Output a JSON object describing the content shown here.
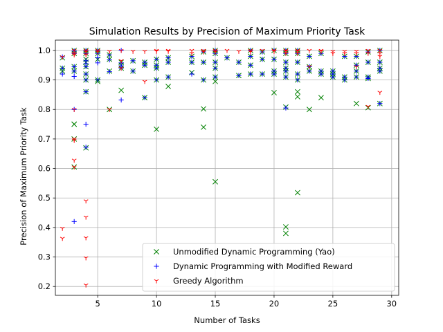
{
  "chart_data": {
    "type": "scatter",
    "title": "Simulation Results by Precision of Maximum Priority Task",
    "xlabel": "Number of Tasks",
    "ylabel": "Precision of Maximum Priority Task",
    "xlim": [
      1.4,
      30.6
    ],
    "ylim": [
      0.17,
      1.035
    ],
    "xticks": [
      5,
      10,
      15,
      20,
      25,
      30
    ],
    "yticks": [
      0.2,
      0.3,
      0.4,
      0.5,
      0.6,
      0.7,
      0.8,
      0.9,
      1.0
    ],
    "xtick_labels": [
      "5",
      "10",
      "15",
      "20",
      "25",
      "30"
    ],
    "ytick_labels": [
      "0.2",
      "0.3",
      "0.4",
      "0.5",
      "0.6",
      "0.7",
      "0.8",
      "0.9",
      "1.0"
    ],
    "grid": true,
    "legend_position": "lower-right",
    "series": [
      {
        "name": "Unmodified Dynamic Programming (Yao)",
        "marker": "x",
        "color": "#008000",
        "points": [
          [
            2,
            0.975
          ],
          [
            2,
            0.94
          ],
          [
            2,
            0.93
          ],
          [
            3,
            1.0
          ],
          [
            3,
            0.99
          ],
          [
            3,
            0.945
          ],
          [
            3,
            0.93
          ],
          [
            3,
            0.75
          ],
          [
            3,
            0.75
          ],
          [
            3,
            0.7
          ],
          [
            3,
            0.605
          ],
          [
            4,
            1.0
          ],
          [
            4,
            0.99
          ],
          [
            4,
            0.97
          ],
          [
            4,
            0.96
          ],
          [
            4,
            0.945
          ],
          [
            4,
            0.92
          ],
          [
            4,
            0.9
          ],
          [
            4,
            0.86
          ],
          [
            4,
            0.67
          ],
          [
            5,
            1.0
          ],
          [
            5,
            0.99
          ],
          [
            5,
            0.97
          ],
          [
            5,
            0.9
          ],
          [
            5,
            0.895
          ],
          [
            6,
            0.985
          ],
          [
            6,
            0.97
          ],
          [
            6,
            0.93
          ],
          [
            6,
            0.8
          ],
          [
            7,
            0.96
          ],
          [
            7,
            0.95
          ],
          [
            7,
            0.94
          ],
          [
            7,
            0.865
          ],
          [
            8,
            0.965
          ],
          [
            8,
            0.93
          ],
          [
            9,
            0.96
          ],
          [
            9,
            0.95
          ],
          [
            9,
            0.84
          ],
          [
            10,
            0.97
          ],
          [
            10,
            0.95
          ],
          [
            10,
            0.94
          ],
          [
            10,
            0.9
          ],
          [
            10,
            0.733
          ],
          [
            11,
            0.975
          ],
          [
            11,
            0.96
          ],
          [
            11,
            0.91
          ],
          [
            11,
            0.878
          ],
          [
            13,
            0.98
          ],
          [
            13,
            0.96
          ],
          [
            13,
            0.925
          ],
          [
            14,
            0.995
          ],
          [
            14,
            0.96
          ],
          [
            14,
            0.9
          ],
          [
            14,
            0.802
          ],
          [
            14,
            0.74
          ],
          [
            15,
            1.0
          ],
          [
            15,
            0.99
          ],
          [
            15,
            0.96
          ],
          [
            15,
            0.94
          ],
          [
            15,
            0.91
          ],
          [
            15,
            0.895
          ],
          [
            15,
            0.555
          ],
          [
            16,
            0.975
          ],
          [
            17,
            0.96
          ],
          [
            17,
            0.915
          ],
          [
            18,
            1.0
          ],
          [
            18,
            0.98
          ],
          [
            18,
            0.95
          ],
          [
            18,
            0.92
          ],
          [
            19,
            0.995
          ],
          [
            19,
            0.97
          ],
          [
            19,
            0.92
          ],
          [
            20,
            1.0
          ],
          [
            20,
            0.97
          ],
          [
            20,
            0.93
          ],
          [
            20,
            0.92
          ],
          [
            20,
            0.857
          ],
          [
            21,
            1.0
          ],
          [
            21,
            0.99
          ],
          [
            21,
            0.96
          ],
          [
            21,
            0.94
          ],
          [
            21,
            0.93
          ],
          [
            21,
            0.91
          ],
          [
            21,
            0.808
          ],
          [
            21,
            0.402
          ],
          [
            21,
            0.38
          ],
          [
            22,
            1.0
          ],
          [
            22,
            0.99
          ],
          [
            22,
            0.96
          ],
          [
            22,
            0.92
          ],
          [
            22,
            0.9
          ],
          [
            22,
            0.86
          ],
          [
            22,
            0.843
          ],
          [
            22,
            0.518
          ],
          [
            23,
            0.98
          ],
          [
            23,
            0.945
          ],
          [
            23,
            0.93
          ],
          [
            23,
            0.8
          ],
          [
            24,
            0.99
          ],
          [
            24,
            0.93
          ],
          [
            24,
            0.92
          ],
          [
            24,
            0.84
          ],
          [
            25,
            0.93
          ],
          [
            25,
            0.92
          ],
          [
            25,
            0.91
          ],
          [
            26,
            0.98
          ],
          [
            26,
            0.91
          ],
          [
            26,
            0.9
          ],
          [
            27,
            0.98
          ],
          [
            27,
            0.95
          ],
          [
            27,
            0.93
          ],
          [
            27,
            0.91
          ],
          [
            27,
            0.82
          ],
          [
            28,
            0.995
          ],
          [
            28,
            0.96
          ],
          [
            28,
            0.91
          ],
          [
            28,
            0.905
          ],
          [
            28,
            0.806
          ],
          [
            29,
            1.0
          ],
          [
            29,
            0.96
          ],
          [
            29,
            0.94
          ],
          [
            29,
            0.93
          ],
          [
            29,
            0.82
          ]
        ]
      },
      {
        "name": "Dynamic Programming with Modified Reward",
        "marker": "+",
        "color": "#0000ff",
        "points": [
          [
            2,
            0.978
          ],
          [
            2,
            0.94
          ],
          [
            2,
            0.92
          ],
          [
            3,
            0.998
          ],
          [
            3,
            0.99
          ],
          [
            3,
            0.945
          ],
          [
            3,
            0.93
          ],
          [
            3,
            0.912
          ],
          [
            3,
            0.8
          ],
          [
            3,
            0.42
          ],
          [
            4,
            1.0
          ],
          [
            4,
            0.99
          ],
          [
            4,
            0.965
          ],
          [
            4,
            0.955
          ],
          [
            4,
            0.945
          ],
          [
            4,
            0.92
          ],
          [
            4,
            0.9
          ],
          [
            4,
            0.86
          ],
          [
            4,
            0.75
          ],
          [
            4,
            0.672
          ],
          [
            5,
            1.0
          ],
          [
            5,
            0.99
          ],
          [
            5,
            0.975
          ],
          [
            5,
            0.958
          ],
          [
            5,
            0.9
          ],
          [
            6,
            0.985
          ],
          [
            6,
            0.968
          ],
          [
            6,
            0.928
          ],
          [
            7,
            1.0
          ],
          [
            7,
            0.958
          ],
          [
            7,
            0.948
          ],
          [
            7,
            0.94
          ],
          [
            7,
            0.832
          ],
          [
            8,
            0.965
          ],
          [
            8,
            0.93
          ],
          [
            9,
            0.96
          ],
          [
            9,
            0.95
          ],
          [
            9,
            0.84
          ],
          [
            10,
            0.97
          ],
          [
            10,
            0.95
          ],
          [
            10,
            0.94
          ],
          [
            10,
            0.9
          ],
          [
            11,
            0.975
          ],
          [
            11,
            0.96
          ],
          [
            11,
            0.91
          ],
          [
            13,
            0.98
          ],
          [
            13,
            0.96
          ],
          [
            13,
            0.92
          ],
          [
            14,
            0.995
          ],
          [
            14,
            0.96
          ],
          [
            14,
            0.9
          ],
          [
            15,
            1.0
          ],
          [
            15,
            0.99
          ],
          [
            15,
            0.96
          ],
          [
            15,
            0.94
          ],
          [
            15,
            0.91
          ],
          [
            16,
            0.975
          ],
          [
            17,
            0.96
          ],
          [
            17,
            0.915
          ],
          [
            18,
            1.0
          ],
          [
            18,
            0.98
          ],
          [
            18,
            0.95
          ],
          [
            18,
            0.92
          ],
          [
            19,
            0.995
          ],
          [
            19,
            0.97
          ],
          [
            19,
            0.92
          ],
          [
            20,
            1.0
          ],
          [
            20,
            0.97
          ],
          [
            20,
            0.93
          ],
          [
            20,
            0.92
          ],
          [
            21,
            1.0
          ],
          [
            21,
            0.99
          ],
          [
            21,
            0.96
          ],
          [
            21,
            0.94
          ],
          [
            21,
            0.93
          ],
          [
            21,
            0.91
          ],
          [
            21,
            0.805
          ],
          [
            22,
            1.0
          ],
          [
            22,
            0.99
          ],
          [
            22,
            0.96
          ],
          [
            22,
            0.92
          ],
          [
            22,
            0.9
          ],
          [
            23,
            0.98
          ],
          [
            23,
            0.945
          ],
          [
            23,
            0.93
          ],
          [
            24,
            0.99
          ],
          [
            24,
            0.93
          ],
          [
            24,
            0.92
          ],
          [
            25,
            0.93
          ],
          [
            25,
            0.92
          ],
          [
            25,
            0.91
          ],
          [
            26,
            0.98
          ],
          [
            26,
            0.91
          ],
          [
            26,
            0.9
          ],
          [
            27,
            0.98
          ],
          [
            27,
            0.95
          ],
          [
            27,
            0.93
          ],
          [
            27,
            0.91
          ],
          [
            28,
            0.995
          ],
          [
            28,
            0.96
          ],
          [
            28,
            0.91
          ],
          [
            28,
            0.905
          ],
          [
            29,
            1.0
          ],
          [
            29,
            0.96
          ],
          [
            29,
            0.94
          ],
          [
            29,
            0.93
          ],
          [
            29,
            0.82
          ]
        ]
      },
      {
        "name": "Greedy Algorithm",
        "marker": "tri_down",
        "color": "#ff0000",
        "points": [
          [
            2,
            0.978
          ],
          [
            2,
            0.397
          ],
          [
            2,
            0.363
          ],
          [
            3,
            1.0
          ],
          [
            3,
            0.99
          ],
          [
            3,
            0.985
          ],
          [
            3,
            0.8
          ],
          [
            3,
            0.7
          ],
          [
            3,
            0.695
          ],
          [
            3,
            0.628
          ],
          [
            3,
            0.605
          ],
          [
            4,
            1.0
          ],
          [
            4,
            0.995
          ],
          [
            4,
            0.985
          ],
          [
            4,
            0.49
          ],
          [
            4,
            0.435
          ],
          [
            4,
            0.365
          ],
          [
            4,
            0.297
          ],
          [
            4,
            0.205
          ],
          [
            5,
            1.0
          ],
          [
            5,
            0.995
          ],
          [
            6,
            0.997
          ],
          [
            6,
            0.8
          ],
          [
            7,
            1.0
          ],
          [
            7,
            0.965
          ],
          [
            7,
            0.94
          ],
          [
            8,
            0.997
          ],
          [
            9,
            0.997
          ],
          [
            9,
            0.895
          ],
          [
            10,
            1.0
          ],
          [
            10,
            0.997
          ],
          [
            11,
            1.0
          ],
          [
            11,
            0.997
          ],
          [
            13,
            1.0
          ],
          [
            13,
            0.99
          ],
          [
            14,
            1.0
          ],
          [
            14,
            0.995
          ],
          [
            15,
            1.0
          ],
          [
            15,
            0.995
          ],
          [
            16,
            1.0
          ],
          [
            17,
            0.997
          ],
          [
            18,
            1.0
          ],
          [
            18,
            0.995
          ],
          [
            19,
            1.0
          ],
          [
            20,
            1.0
          ],
          [
            20,
            0.997
          ],
          [
            21,
            1.0
          ],
          [
            21,
            0.997
          ],
          [
            21,
            0.99
          ],
          [
            22,
            1.0
          ],
          [
            22,
            0.997
          ],
          [
            22,
            0.99
          ],
          [
            23,
            1.0
          ],
          [
            23,
            0.945
          ],
          [
            24,
            1.0
          ],
          [
            24,
            0.997
          ],
          [
            25,
            0.997
          ],
          [
            25,
            0.99
          ],
          [
            26,
            0.997
          ],
          [
            26,
            0.99
          ],
          [
            27,
            0.997
          ],
          [
            27,
            0.99
          ],
          [
            27,
            0.945
          ],
          [
            28,
            1.0
          ],
          [
            28,
            0.99
          ],
          [
            28,
            0.81
          ],
          [
            29,
            1.0
          ],
          [
            29,
            0.99
          ],
          [
            29,
            0.98
          ],
          [
            29,
            0.858
          ]
        ]
      }
    ]
  }
}
